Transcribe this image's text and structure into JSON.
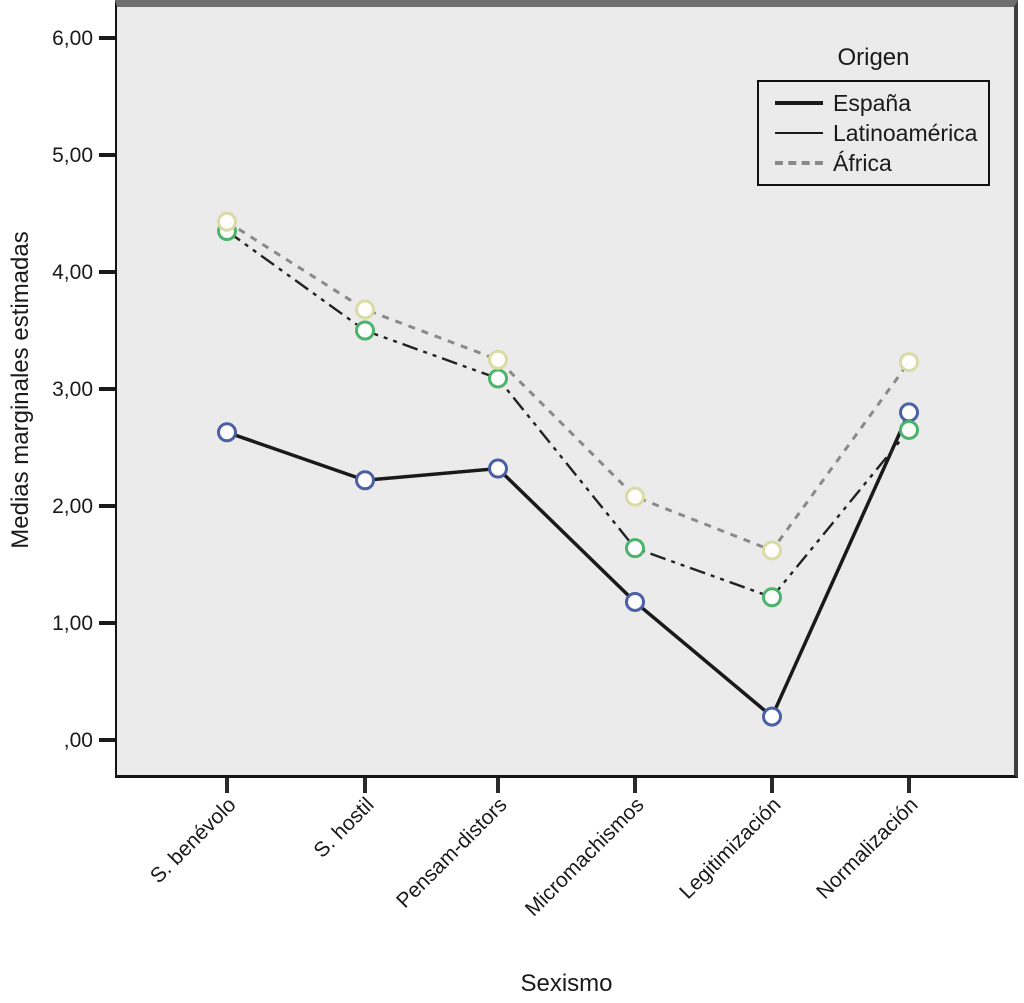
{
  "chart_data": {
    "type": "line",
    "title": "",
    "xlabel": "Sexismo",
    "ylabel": "Medias marginales estimadas",
    "legend_title": "Origen",
    "legend_position": "top-right",
    "grid": false,
    "plot_background": "#ebebeb",
    "frame_color": "#1a1a1a",
    "categories": [
      "S. benévolo",
      "S. hostil",
      "Pensam-distors",
      "Micromachismos",
      "Legitimización",
      "Normalización"
    ],
    "y_ticks": [
      "6,00",
      "5,00",
      "4,00",
      "3,00",
      "2,00",
      "1,00",
      ",00"
    ],
    "y_tick_values": [
      6,
      5,
      4,
      3,
      2,
      1,
      0
    ],
    "ylim": [
      -0.3,
      6.3
    ],
    "series": [
      {
        "name": "España",
        "values": [
          2.63,
          2.22,
          2.32,
          1.18,
          0.2,
          2.8
        ],
        "line_style": "solid-thick",
        "line_color": "#1a1a1a",
        "marker_color": "#4a5fa5",
        "marker_fill": "#fdfdfd"
      },
      {
        "name": "Latinoamérica",
        "values": [
          4.35,
          3.5,
          3.09,
          1.64,
          1.22,
          2.65
        ],
        "line_style": "dash-dot-dot",
        "line_color": "#222222",
        "marker_color": "#4cb36b",
        "marker_fill": "#fdfdfd"
      },
      {
        "name": "África",
        "values": [
          4.43,
          3.68,
          3.25,
          2.08,
          1.62,
          3.23
        ],
        "line_style": "dashed",
        "line_color": "#8a8a8a",
        "marker_color": "#d9dba4",
        "marker_fill": "#fdfdfd"
      }
    ]
  }
}
